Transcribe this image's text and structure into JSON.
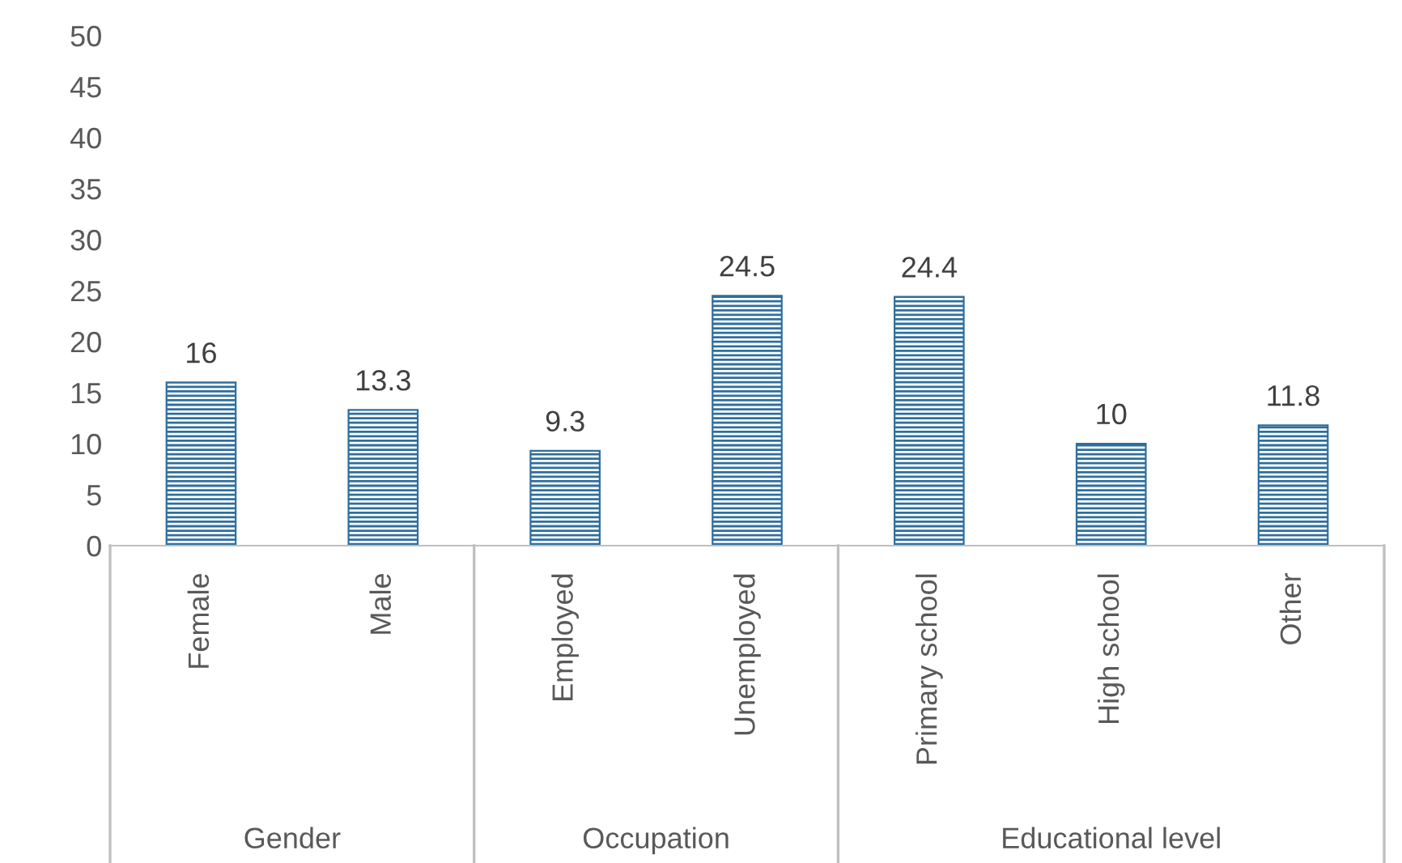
{
  "chart_data": {
    "type": "bar",
    "categories": [
      "Female",
      "Male",
      "Employed",
      "Unemployed",
      "Primary school",
      "High school",
      "Other"
    ],
    "values": [
      16,
      13.3,
      9.3,
      24.5,
      24.4,
      10,
      11.8
    ],
    "color": "#2e6f9e",
    "ylim": [
      0,
      50
    ],
    "yticks": [
      0,
      5,
      10,
      15,
      20,
      25,
      30,
      35,
      40,
      45,
      50
    ],
    "grid": false,
    "data_labels": true,
    "annotations": [
      "Gender",
      "Occupation",
      "Educational level"
    ]
  }
}
